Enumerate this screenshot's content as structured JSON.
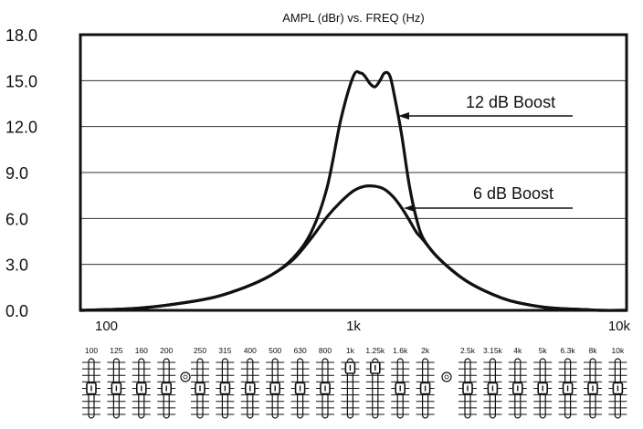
{
  "chart_data": {
    "type": "line",
    "title": "AMPL (dBr) vs. FREQ (Hz)",
    "xlabel": "",
    "ylabel": "",
    "xscale": "log",
    "xlim": [
      100,
      10000
    ],
    "ylim": [
      0,
      18
    ],
    "grid": "horizontal",
    "y_ticks": [
      "0.0",
      "3.0",
      "6.0",
      "9.0",
      "12.0",
      "15.0",
      "18.0"
    ],
    "x_ticks": [
      "100",
      "1k",
      "10k"
    ],
    "x_tick_values": [
      100,
      1000,
      10000
    ],
    "series": [
      {
        "name": "12 dB Boost",
        "x": [
          100,
          150,
          200,
          300,
          400,
          500,
          600,
          700,
          800,
          900,
          1000,
          1060,
          1100,
          1150,
          1200,
          1250,
          1300,
          1360,
          1420,
          1500,
          1600,
          1700,
          1800,
          2000,
          2300,
          2600,
          3000,
          3500,
          4000,
          5000,
          6000,
          7000,
          8000,
          10000
        ],
        "y": [
          0.0,
          0.1,
          0.3,
          0.8,
          1.5,
          2.3,
          3.4,
          5.1,
          8.0,
          12.5,
          15.3,
          15.5,
          15.3,
          14.8,
          14.6,
          15.0,
          15.5,
          15.3,
          13.8,
          11.5,
          8.2,
          6.0,
          4.7,
          3.6,
          2.6,
          1.9,
          1.3,
          0.8,
          0.5,
          0.2,
          0.1,
          0.05,
          0.0,
          0.0
        ]
      },
      {
        "name": "6 dB Boost",
        "x": [
          100,
          150,
          200,
          300,
          400,
          500,
          600,
          700,
          800,
          900,
          1000,
          1100,
          1200,
          1300,
          1400,
          1500,
          1600,
          1700,
          1800,
          2000,
          2300,
          2600,
          3000,
          3500,
          4000,
          5000,
          6000,
          7000,
          8000,
          10000
        ],
        "y": [
          0.0,
          0.1,
          0.3,
          0.8,
          1.5,
          2.3,
          3.3,
          4.7,
          6.1,
          7.1,
          7.8,
          8.1,
          8.1,
          7.9,
          7.4,
          6.7,
          5.9,
          5.1,
          4.6,
          3.6,
          2.6,
          1.9,
          1.3,
          0.8,
          0.5,
          0.2,
          0.1,
          0.05,
          0.0,
          0.0
        ]
      }
    ],
    "annotations": [
      "12 dB Boost",
      "6 dB Boost"
    ],
    "equalizer_band_labels": [
      [
        "100",
        "125",
        "160",
        "200"
      ],
      [
        "250",
        "315",
        "400",
        "500",
        "630",
        "800",
        "1k",
        "1.25k",
        "1.6k",
        "2k"
      ],
      [
        "2.5k",
        "3.15k",
        "4k",
        "5k",
        "6.3k",
        "8k",
        "10k"
      ]
    ],
    "equalizer_boosted_bands": [
      "1k",
      "1.25k"
    ]
  }
}
